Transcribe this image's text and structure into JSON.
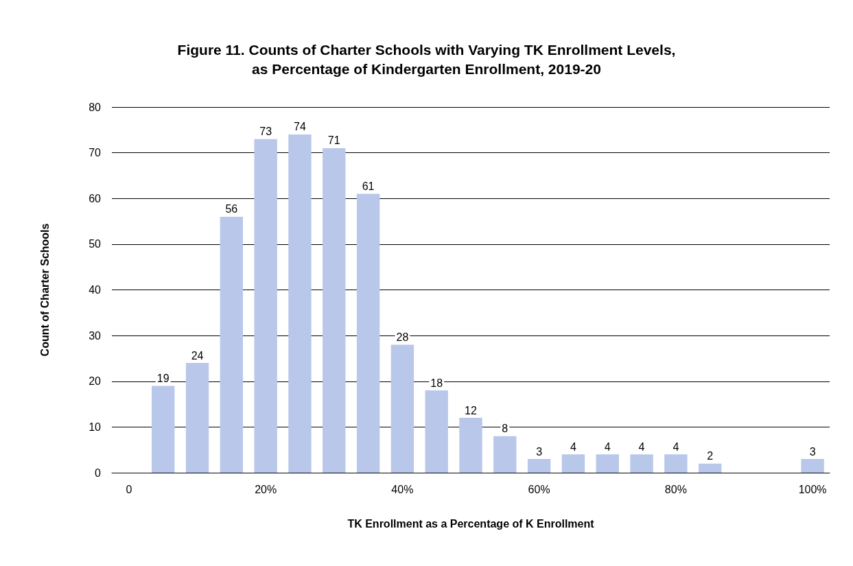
{
  "chart_data": {
    "type": "bar",
    "title": "Figure 11. Counts of Charter Schools with Varying TK Enrollment Levels,\nas Percentage of Kindergarten Enrollment, 2019-20",
    "xlabel": "TK Enrollment as a Percentage of K Enrollment",
    "ylabel": "Count of Charter Schools",
    "categories": [
      "0",
      null,
      null,
      null,
      "20%",
      null,
      null,
      null,
      "40%",
      null,
      null,
      null,
      "60%",
      null,
      null,
      null,
      "80%",
      null,
      null,
      null,
      "100%"
    ],
    "values": [
      null,
      19,
      24,
      56,
      73,
      74,
      71,
      61,
      28,
      18,
      12,
      8,
      3,
      4,
      4,
      4,
      4,
      2,
      null,
      null,
      3
    ],
    "color": "#b8c7ea",
    "ylim": [
      0,
      80
    ],
    "yticks": [
      0,
      10,
      20,
      30,
      40,
      50,
      60,
      70,
      80
    ],
    "grid": "y",
    "data_labels": true
  }
}
